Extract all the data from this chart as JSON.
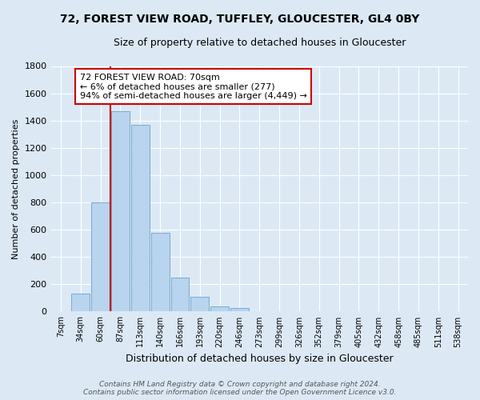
{
  "title": "72, FOREST VIEW ROAD, TUFFLEY, GLOUCESTER, GL4 0BY",
  "subtitle": "Size of property relative to detached houses in Gloucester",
  "xlabel": "Distribution of detached houses by size in Gloucester",
  "ylabel": "Number of detached properties",
  "bar_labels": [
    "7sqm",
    "34sqm",
    "60sqm",
    "87sqm",
    "113sqm",
    "140sqm",
    "166sqm",
    "193sqm",
    "220sqm",
    "246sqm",
    "273sqm",
    "299sqm",
    "326sqm",
    "352sqm",
    "379sqm",
    "405sqm",
    "432sqm",
    "458sqm",
    "485sqm",
    "511sqm",
    "538sqm"
  ],
  "bar_values": [
    5,
    130,
    800,
    1470,
    1370,
    575,
    250,
    110,
    35,
    25,
    5,
    0,
    0,
    0,
    0,
    0,
    0,
    0,
    0,
    0,
    0
  ],
  "bar_color": "#b8d4ee",
  "bar_edge_color": "#7aaacf",
  "vline_x": 2.5,
  "vline_color": "#cc0000",
  "annotation_title": "72 FOREST VIEW ROAD: 70sqm",
  "annotation_line1": "← 6% of detached houses are smaller (277)",
  "annotation_line2": "94% of semi-detached houses are larger (4,449) →",
  "annotation_box_facecolor": "#ffffff",
  "annotation_box_edgecolor": "#cc0000",
  "ylim": [
    0,
    1800
  ],
  "yticks": [
    0,
    200,
    400,
    600,
    800,
    1000,
    1200,
    1400,
    1600,
    1800
  ],
  "footer_line1": "Contains HM Land Registry data © Crown copyright and database right 2024.",
  "footer_line2": "Contains public sector information licensed under the Open Government Licence v3.0.",
  "background_color": "#dce9f5",
  "grid_color": "#ffffff",
  "title_fontsize": 10,
  "subtitle_fontsize": 9,
  "ylabel_fontsize": 8,
  "xlabel_fontsize": 9,
  "tick_fontsize": 7,
  "ytick_fontsize": 8,
  "annotation_fontsize": 8,
  "footer_fontsize": 6.5
}
